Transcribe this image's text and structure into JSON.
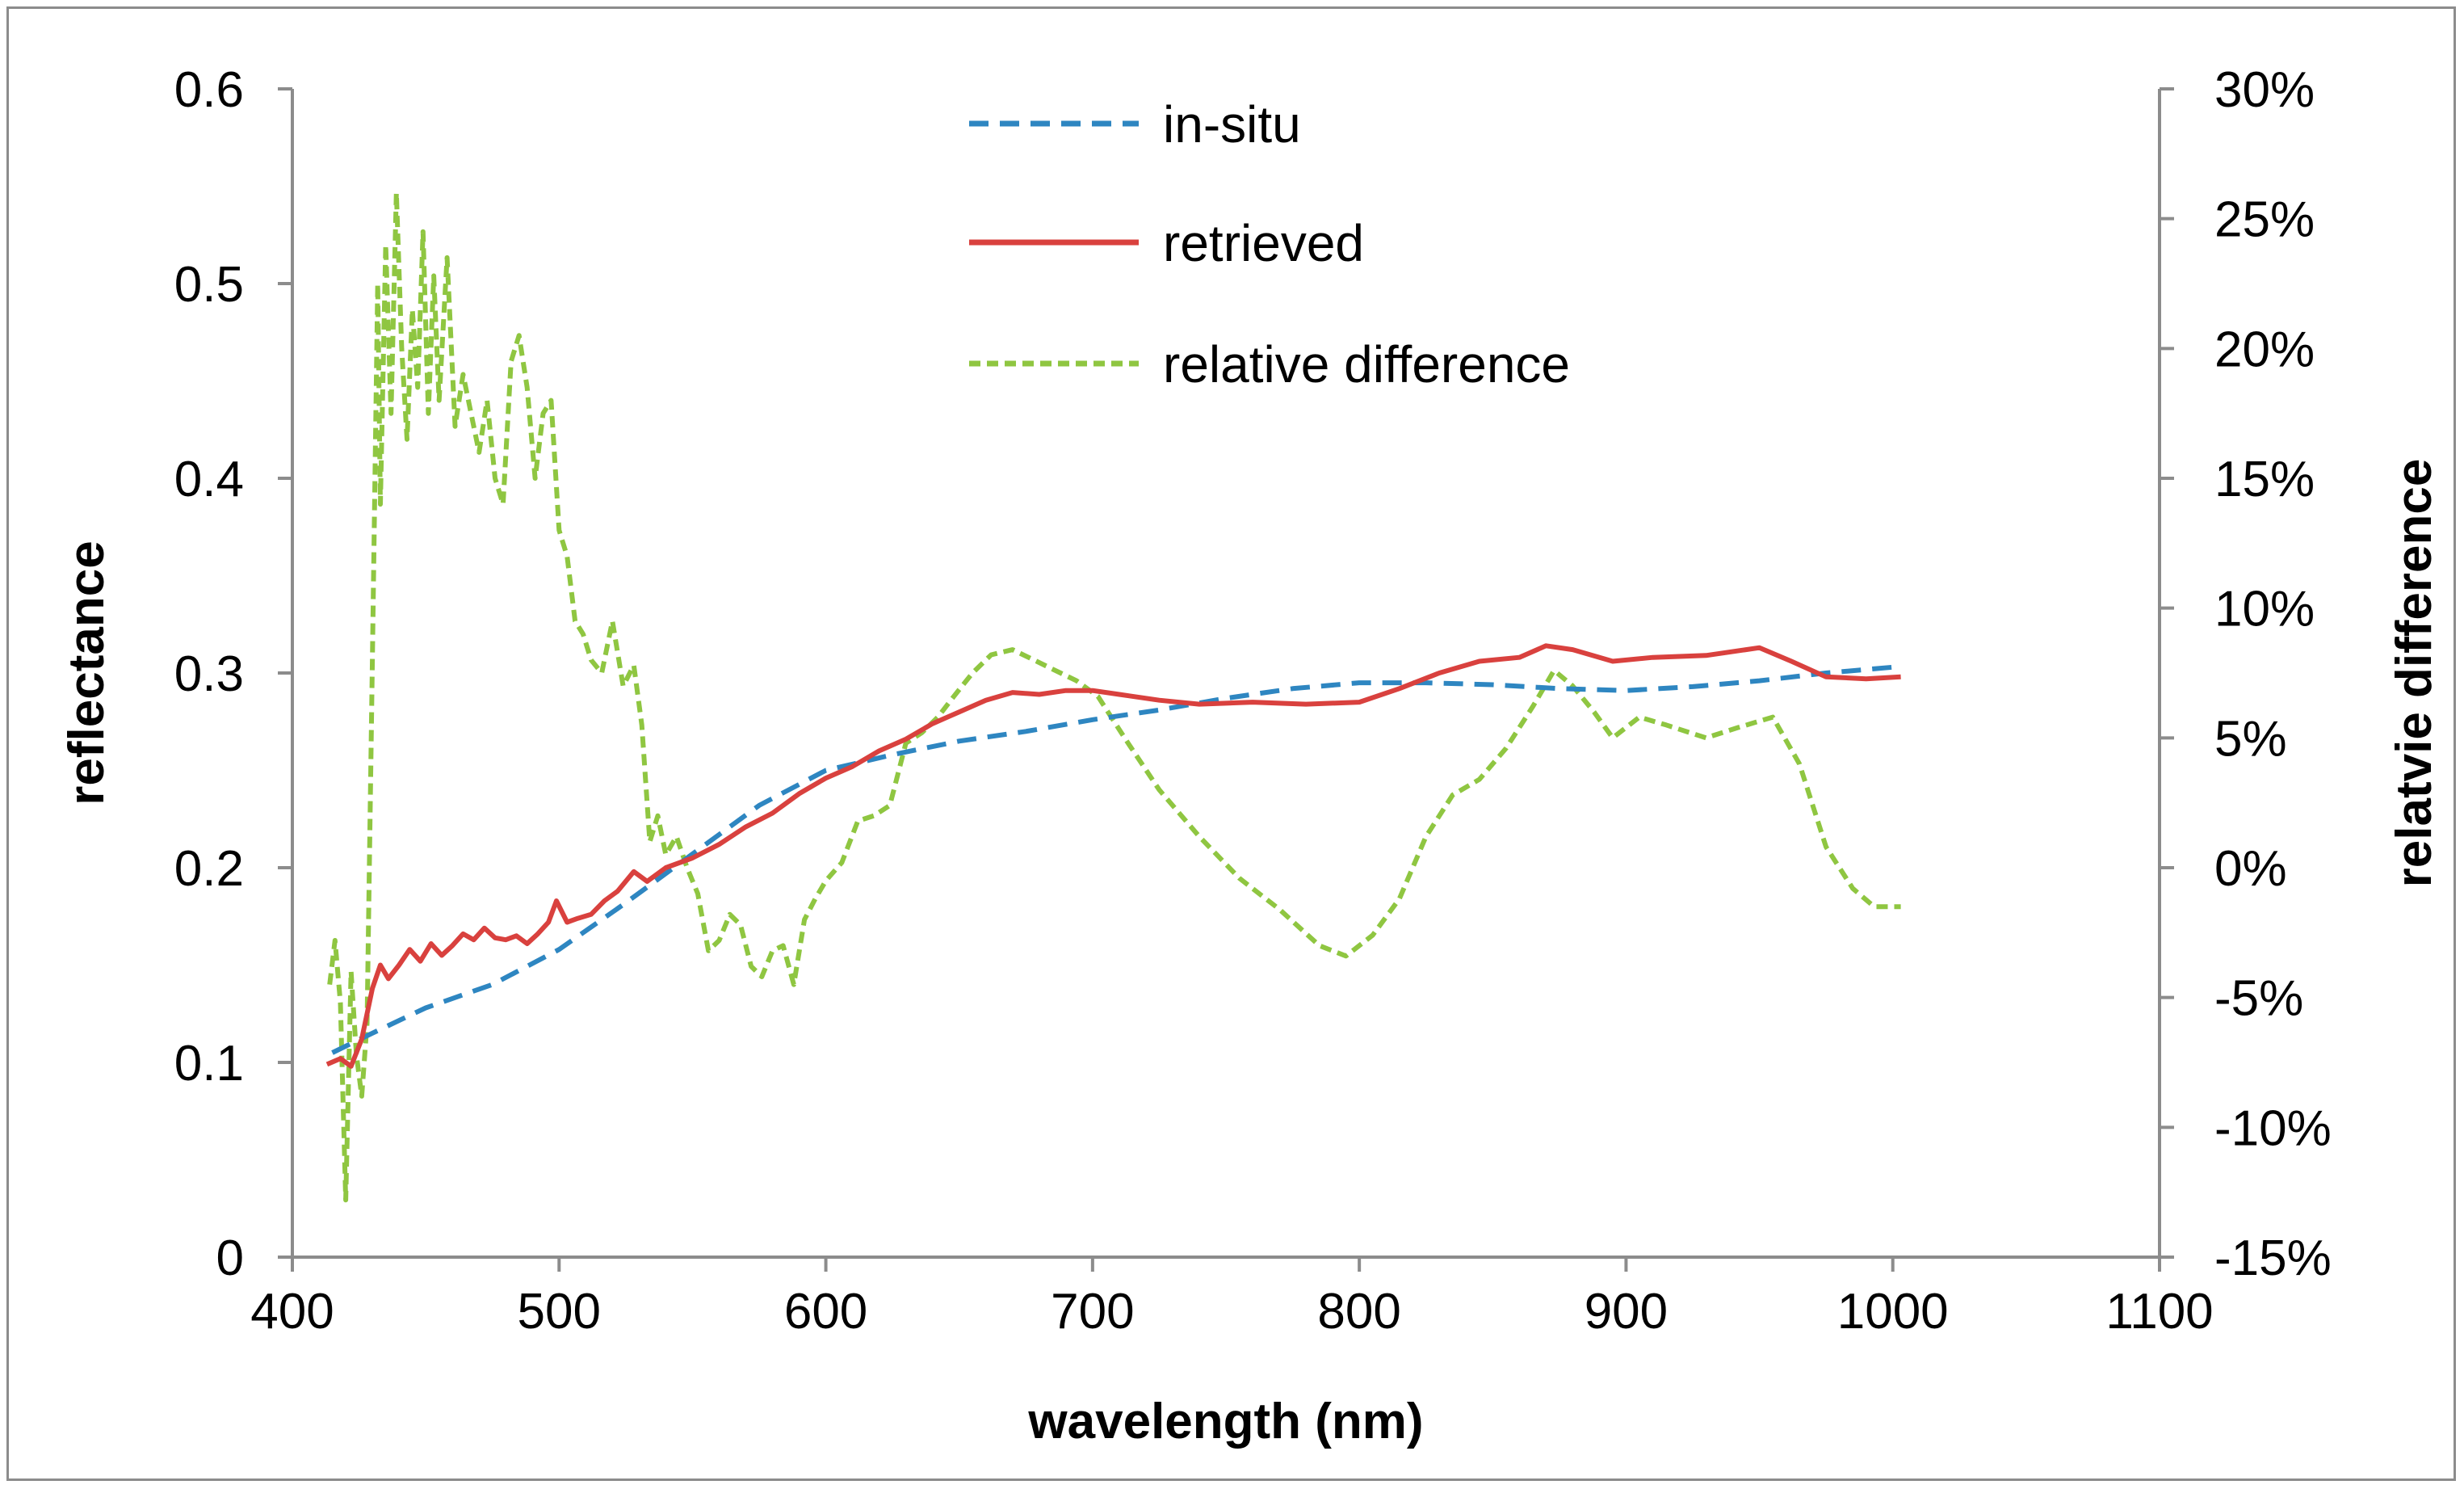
{
  "chart_data": {
    "type": "line",
    "title": "",
    "xlabel": "wavelength (nm)",
    "ylabel": "reflectance",
    "y2label": "relatvie difference",
    "xlim": [
      400,
      1100
    ],
    "ylim": [
      0,
      0.6
    ],
    "y2lim": [
      -0.15,
      0.3
    ],
    "x_ticks": [
      "400",
      "500",
      "600",
      "700",
      "800",
      "900",
      "1000",
      "1100"
    ],
    "y_ticks": [
      "0",
      "0.1",
      "0.2",
      "0.3",
      "0.4",
      "0.5",
      "0.6"
    ],
    "y2_ticks": [
      "-15%",
      "-10%",
      "-5%",
      "0%",
      "5%",
      "10%",
      "15%",
      "20%",
      "25%",
      "30%"
    ],
    "legend_position": "top-center",
    "grid": false,
    "series": [
      {
        "name": "in-situ",
        "axis": "left",
        "color": "#2e86c1",
        "style": "dashed",
        "points": [
          [
            415,
            0.105
          ],
          [
            430,
            0.115
          ],
          [
            450,
            0.128
          ],
          [
            475,
            0.14
          ],
          [
            500,
            0.158
          ],
          [
            525,
            0.182
          ],
          [
            550,
            0.207
          ],
          [
            575,
            0.232
          ],
          [
            600,
            0.25
          ],
          [
            625,
            0.258
          ],
          [
            650,
            0.265
          ],
          [
            675,
            0.27
          ],
          [
            700,
            0.276
          ],
          [
            725,
            0.281
          ],
          [
            750,
            0.287
          ],
          [
            775,
            0.292
          ],
          [
            800,
            0.295
          ],
          [
            825,
            0.295
          ],
          [
            850,
            0.294
          ],
          [
            875,
            0.292
          ],
          [
            900,
            0.291
          ],
          [
            925,
            0.293
          ],
          [
            950,
            0.296
          ],
          [
            975,
            0.3
          ],
          [
            1000,
            0.303
          ]
        ]
      },
      {
        "name": "retrieved",
        "axis": "left",
        "color": "#d9413e",
        "style": "solid",
        "points": [
          [
            413,
            0.099
          ],
          [
            418,
            0.102
          ],
          [
            422,
            0.098
          ],
          [
            426,
            0.112
          ],
          [
            430,
            0.138
          ],
          [
            433,
            0.15
          ],
          [
            436,
            0.143
          ],
          [
            440,
            0.15
          ],
          [
            444,
            0.158
          ],
          [
            448,
            0.152
          ],
          [
            452,
            0.161
          ],
          [
            456,
            0.155
          ],
          [
            460,
            0.16
          ],
          [
            464,
            0.166
          ],
          [
            468,
            0.163
          ],
          [
            472,
            0.169
          ],
          [
            476,
            0.164
          ],
          [
            480,
            0.163
          ],
          [
            484,
            0.165
          ],
          [
            488,
            0.161
          ],
          [
            492,
            0.166
          ],
          [
            496,
            0.172
          ],
          [
            499,
            0.183
          ],
          [
            503,
            0.172
          ],
          [
            507,
            0.174
          ],
          [
            512,
            0.176
          ],
          [
            517,
            0.183
          ],
          [
            522,
            0.188
          ],
          [
            528,
            0.198
          ],
          [
            533,
            0.193
          ],
          [
            540,
            0.2
          ],
          [
            550,
            0.205
          ],
          [
            560,
            0.212
          ],
          [
            570,
            0.221
          ],
          [
            580,
            0.228
          ],
          [
            590,
            0.238
          ],
          [
            600,
            0.246
          ],
          [
            610,
            0.252
          ],
          [
            620,
            0.26
          ],
          [
            630,
            0.266
          ],
          [
            640,
            0.274
          ],
          [
            650,
            0.28
          ],
          [
            660,
            0.286
          ],
          [
            670,
            0.29
          ],
          [
            680,
            0.289
          ],
          [
            690,
            0.291
          ],
          [
            700,
            0.291
          ],
          [
            710,
            0.289
          ],
          [
            725,
            0.286
          ],
          [
            740,
            0.284
          ],
          [
            760,
            0.285
          ],
          [
            780,
            0.284
          ],
          [
            800,
            0.285
          ],
          [
            815,
            0.292
          ],
          [
            830,
            0.3
          ],
          [
            845,
            0.306
          ],
          [
            860,
            0.308
          ],
          [
            870,
            0.314
          ],
          [
            880,
            0.312
          ],
          [
            895,
            0.306
          ],
          [
            910,
            0.308
          ],
          [
            930,
            0.309
          ],
          [
            950,
            0.313
          ],
          [
            962,
            0.306
          ],
          [
            975,
            0.298
          ],
          [
            990,
            0.297
          ],
          [
            1003,
            0.298
          ]
        ]
      },
      {
        "name": "relative difference",
        "axis": "right",
        "color": "#8fc641",
        "style": "dashed",
        "points": [
          [
            414,
            -0.045
          ],
          [
            416,
            -0.028
          ],
          [
            418,
            -0.052
          ],
          [
            420,
            -0.128
          ],
          [
            422,
            -0.04
          ],
          [
            424,
            -0.072
          ],
          [
            426,
            -0.088
          ],
          [
            428,
            -0.06
          ],
          [
            430,
            0.08
          ],
          [
            432,
            0.225
          ],
          [
            433,
            0.14
          ],
          [
            435,
            0.24
          ],
          [
            437,
            0.175
          ],
          [
            439,
            0.26
          ],
          [
            441,
            0.2
          ],
          [
            443,
            0.165
          ],
          [
            445,
            0.215
          ],
          [
            447,
            0.185
          ],
          [
            449,
            0.245
          ],
          [
            451,
            0.175
          ],
          [
            453,
            0.228
          ],
          [
            455,
            0.18
          ],
          [
            458,
            0.235
          ],
          [
            461,
            0.17
          ],
          [
            464,
            0.19
          ],
          [
            467,
            0.175
          ],
          [
            470,
            0.16
          ],
          [
            473,
            0.18
          ],
          [
            476,
            0.15
          ],
          [
            479,
            0.14
          ],
          [
            482,
            0.195
          ],
          [
            485,
            0.205
          ],
          [
            488,
            0.185
          ],
          [
            491,
            0.15
          ],
          [
            494,
            0.175
          ],
          [
            497,
            0.18
          ],
          [
            500,
            0.13
          ],
          [
            503,
            0.12
          ],
          [
            506,
            0.095
          ],
          [
            509,
            0.09
          ],
          [
            512,
            0.08
          ],
          [
            516,
            0.075
          ],
          [
            520,
            0.095
          ],
          [
            524,
            0.07
          ],
          [
            528,
            0.078
          ],
          [
            531,
            0.055
          ],
          [
            534,
            0.01
          ],
          [
            537,
            0.02
          ],
          [
            540,
            0.005
          ],
          [
            544,
            0.012
          ],
          [
            548,
            0.0
          ],
          [
            552,
            -0.01
          ],
          [
            556,
            -0.032
          ],
          [
            560,
            -0.028
          ],
          [
            564,
            -0.018
          ],
          [
            568,
            -0.022
          ],
          [
            572,
            -0.038
          ],
          [
            576,
            -0.042
          ],
          [
            580,
            -0.032
          ],
          [
            584,
            -0.03
          ],
          [
            588,
            -0.045
          ],
          [
            592,
            -0.02
          ],
          [
            596,
            -0.012
          ],
          [
            600,
            -0.005
          ],
          [
            606,
            0.002
          ],
          [
            612,
            0.018
          ],
          [
            618,
            0.02
          ],
          [
            624,
            0.024
          ],
          [
            630,
            0.048
          ],
          [
            636,
            0.052
          ],
          [
            642,
            0.058
          ],
          [
            648,
            0.066
          ],
          [
            655,
            0.075
          ],
          [
            662,
            0.082
          ],
          [
            670,
            0.084
          ],
          [
            678,
            0.08
          ],
          [
            686,
            0.076
          ],
          [
            694,
            0.072
          ],
          [
            702,
            0.066
          ],
          [
            712,
            0.05
          ],
          [
            725,
            0.03
          ],
          [
            740,
            0.012
          ],
          [
            755,
            -0.004
          ],
          [
            770,
            -0.016
          ],
          [
            785,
            -0.03
          ],
          [
            795,
            -0.034
          ],
          [
            805,
            -0.026
          ],
          [
            815,
            -0.012
          ],
          [
            825,
            0.012
          ],
          [
            835,
            0.028
          ],
          [
            845,
            0.034
          ],
          [
            855,
            0.046
          ],
          [
            865,
            0.062
          ],
          [
            873,
            0.076
          ],
          [
            880,
            0.07
          ],
          [
            888,
            0.06
          ],
          [
            895,
            0.05
          ],
          [
            905,
            0.058
          ],
          [
            915,
            0.055
          ],
          [
            930,
            0.05
          ],
          [
            942,
            0.054
          ],
          [
            955,
            0.058
          ],
          [
            965,
            0.04
          ],
          [
            975,
            0.008
          ],
          [
            985,
            -0.008
          ],
          [
            993,
            -0.015
          ],
          [
            1003,
            -0.015
          ]
        ]
      }
    ]
  }
}
